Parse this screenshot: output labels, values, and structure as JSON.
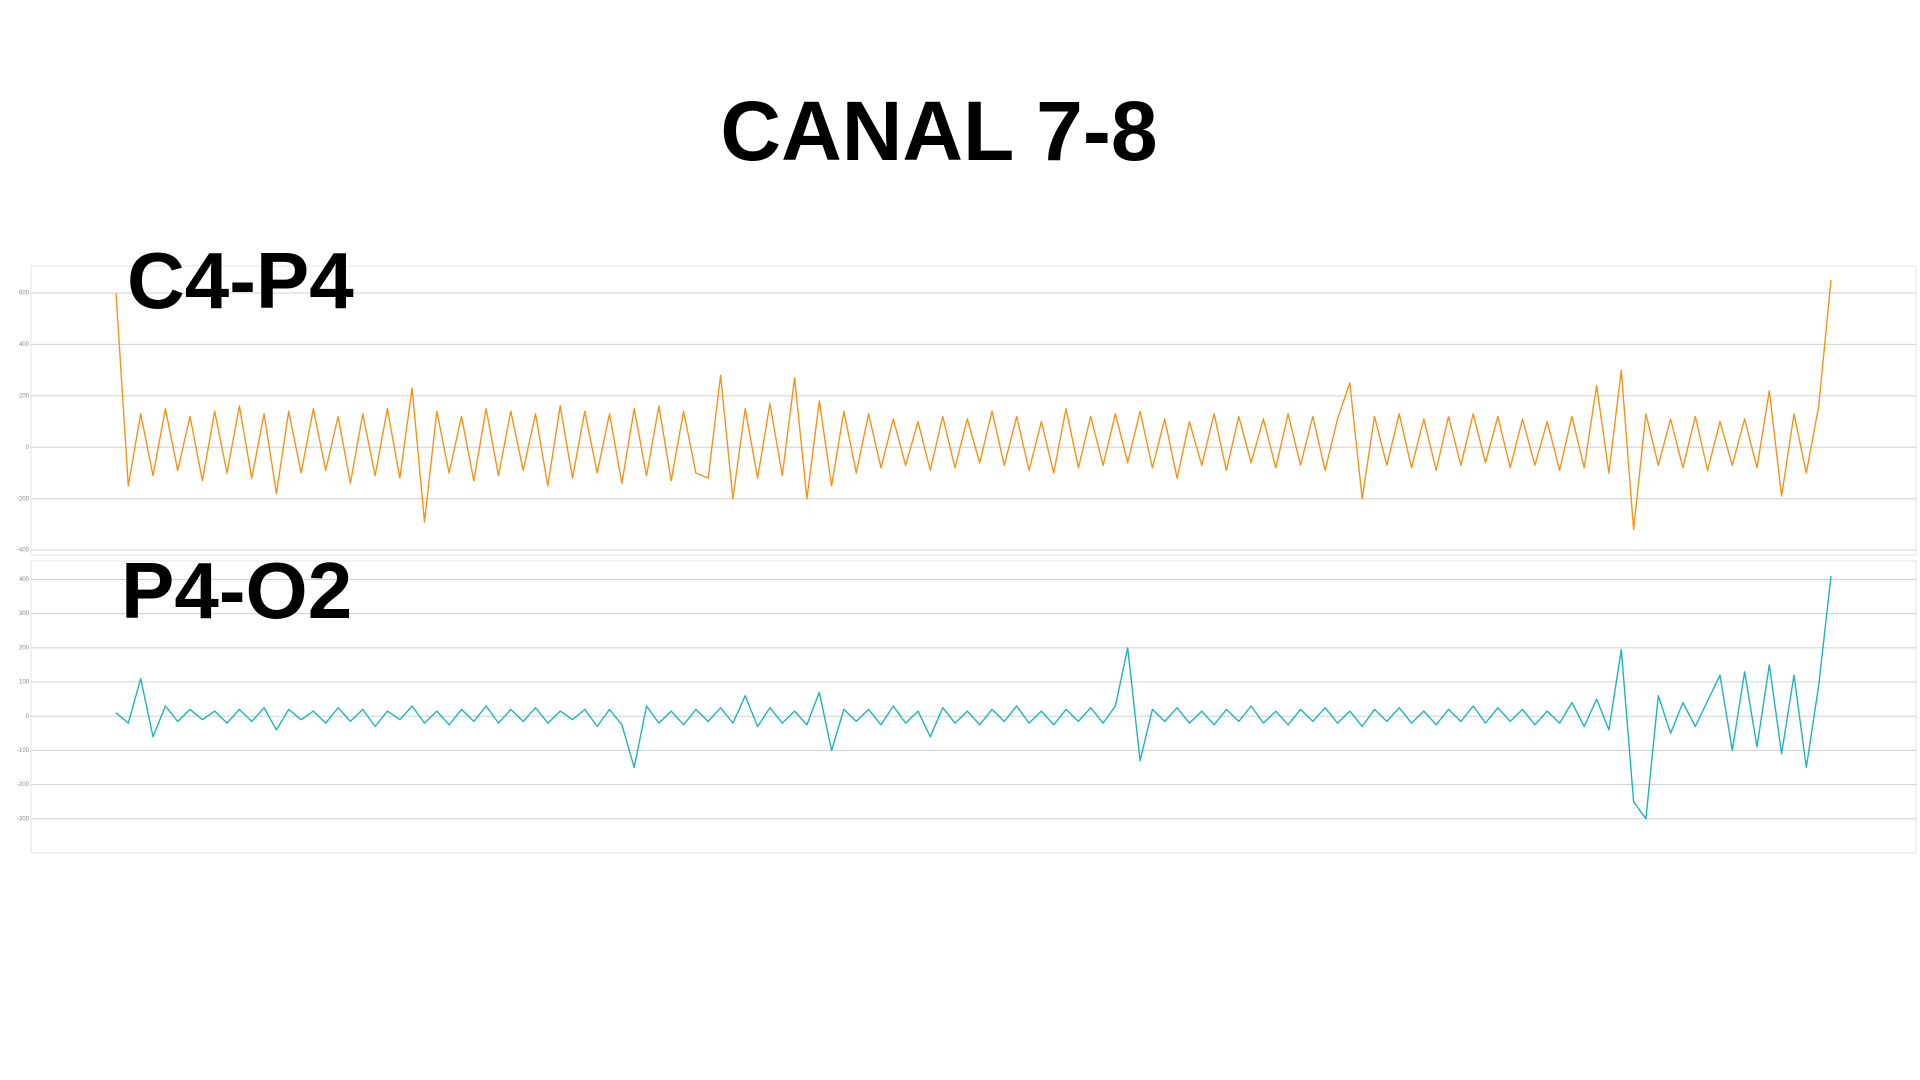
{
  "title": "CANAL 7-8",
  "chart_data": [
    {
      "type": "line",
      "title": "C4-P4",
      "ylim": [
        -419,
        705
      ],
      "yticks": [
        -400,
        -200,
        0,
        200,
        400,
        600
      ],
      "grid": true,
      "series": [
        {
          "color": "#f39419",
          "values": [
            600,
            -150,
            130,
            -110,
            150,
            -90,
            120,
            -130,
            140,
            -100,
            160,
            -120,
            130,
            -180,
            140,
            -100,
            150,
            -90,
            120,
            -140,
            130,
            -110,
            150,
            -120,
            230,
            -290,
            140,
            -100,
            120,
            -130,
            150,
            -110,
            140,
            -90,
            130,
            -150,
            160,
            -120,
            140,
            -100,
            130,
            -140,
            150,
            -110,
            160,
            -130,
            140,
            -100,
            -120,
            280,
            -200,
            150,
            -120,
            170,
            -110,
            270,
            -200,
            180,
            -150,
            140,
            -100,
            130,
            -80,
            110,
            -70,
            100,
            -90,
            120,
            -80,
            110,
            -60,
            140,
            -70,
            120,
            -90,
            100,
            -100,
            150,
            -80,
            120,
            -70,
            130,
            -60,
            140,
            -80,
            110,
            -120,
            100,
            -70,
            130,
            -90,
            120,
            -60,
            110,
            -80,
            130,
            -70,
            120,
            -90,
            110,
            250,
            -200,
            120,
            -70,
            130,
            -80,
            110,
            -90,
            120,
            -70,
            130,
            -60,
            120,
            -80,
            110,
            -70,
            100,
            -90,
            120,
            -80,
            240,
            -100,
            300,
            -320,
            130,
            -70,
            110,
            -80,
            120,
            -90,
            100,
            -70,
            110,
            -80,
            220,
            -190,
            130,
            -100,
            160,
            650
          ]
        }
      ]
    },
    {
      "type": "line",
      "title": "P4-O2",
      "ylim": [
        -400,
        454
      ],
      "yticks": [
        -300,
        -200,
        -100,
        0,
        100,
        200,
        300,
        400
      ],
      "grid": true,
      "series": [
        {
          "color": "#1fb5b8",
          "values": [
            10,
            -20,
            110,
            -60,
            30,
            -15,
            20,
            -10,
            15,
            -20,
            20,
            -15,
            25,
            -40,
            20,
            -10,
            15,
            -20,
            25,
            -15,
            20,
            -30,
            15,
            -10,
            30,
            -20,
            15,
            -25,
            20,
            -15,
            30,
            -20,
            20,
            -15,
            25,
            -20,
            15,
            -10,
            20,
            -30,
            20,
            -25,
            -150,
            30,
            -20,
            15,
            -25,
            20,
            -15,
            25,
            -20,
            60,
            -30,
            25,
            -20,
            15,
            -25,
            70,
            -100,
            20,
            -15,
            20,
            -25,
            30,
            -20,
            15,
            -60,
            25,
            -20,
            15,
            -25,
            20,
            -15,
            30,
            -20,
            15,
            -25,
            20,
            -15,
            25,
            -20,
            30,
            200,
            -130,
            20,
            -15,
            25,
            -20,
            15,
            -25,
            20,
            -15,
            30,
            -20,
            15,
            -25,
            20,
            -15,
            25,
            -20,
            15,
            -30,
            20,
            -15,
            25,
            -20,
            15,
            -25,
            20,
            -15,
            30,
            -20,
            25,
            -15,
            20,
            -25,
            15,
            -20,
            40,
            -30,
            50,
            -40,
            195,
            -250,
            -300,
            60,
            -50,
            40,
            -30,
            45,
            120,
            -100,
            130,
            -90,
            150,
            -110,
            120,
            -150,
            90,
            410
          ]
        }
      ]
    }
  ]
}
